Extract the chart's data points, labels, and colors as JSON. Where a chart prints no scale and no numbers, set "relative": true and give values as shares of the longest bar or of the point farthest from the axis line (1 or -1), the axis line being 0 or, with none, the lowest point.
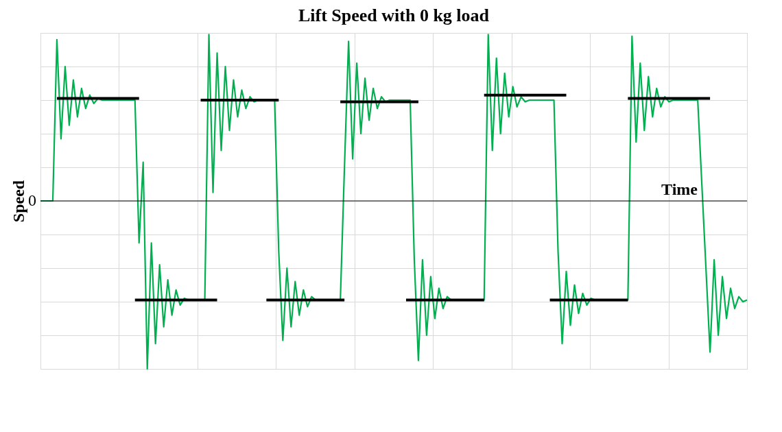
{
  "chart_data": {
    "type": "line",
    "title": "Lift Speed with 0 kg load",
    "xlabel": "Time",
    "ylabel": "Speed",
    "relative": true,
    "grid": true,
    "legend": false,
    "line_style": "solid",
    "categories": [
      null,
      null,
      null,
      null,
      null,
      null,
      null,
      null,
      null,
      null,
      null,
      null,
      null,
      null,
      null,
      null,
      null,
      null,
      null,
      null,
      null,
      null,
      null,
      null,
      null,
      null,
      null,
      null,
      null,
      null,
      null,
      null,
      null,
      null,
      null,
      null,
      null,
      null,
      null,
      null,
      null,
      null,
      null,
      null,
      null,
      null,
      null,
      null,
      null,
      null,
      null,
      null,
      null,
      null,
      null,
      null,
      null,
      null,
      null,
      null,
      null,
      null,
      null,
      null,
      null,
      null,
      null,
      null,
      null,
      null,
      null,
      null,
      null,
      null,
      null,
      null,
      null,
      null,
      null,
      null,
      null,
      null,
      null,
      null,
      null,
      null,
      null,
      null,
      null,
      null,
      null,
      null,
      null,
      null,
      null,
      null,
      null,
      null,
      null,
      null,
      null,
      null,
      null,
      null,
      null,
      null,
      null,
      null,
      null,
      null,
      null,
      null,
      null,
      null,
      null,
      null,
      null,
      null,
      null,
      null,
      null,
      null,
      null,
      null,
      null,
      null,
      null,
      null,
      null,
      null,
      null,
      null,
      null,
      null,
      null,
      null,
      null,
      null,
      null,
      null,
      null,
      null,
      null,
      null,
      null,
      null,
      null,
      null,
      null,
      null,
      null,
      null,
      null,
      null,
      null,
      null,
      null,
      null,
      null,
      null,
      null,
      null,
      null,
      null,
      null,
      null,
      null,
      null,
      null,
      null,
      null,
      null,
      null
    ],
    "series": [
      {
        "color": "#00b050",
        "values": [
          0,
          0,
          0,
          0,
          0.96,
          0.37,
          0.8,
          0.45,
          0.72,
          0.5,
          0.67,
          0.55,
          0.63,
          0.58,
          0.61,
          0.6,
          0.6,
          0.6,
          0.6,
          0.6,
          0.6,
          0.6,
          0.6,
          0.6,
          -0.25,
          0.23,
          -1.0,
          -0.25,
          -0.85,
          -0.38,
          -0.75,
          -0.47,
          -0.68,
          -0.53,
          -0.62,
          -0.58,
          -0.59,
          -0.59,
          -0.59,
          -0.59,
          -0.59,
          0.99,
          0.05,
          0.88,
          0.3,
          0.8,
          0.42,
          0.72,
          0.5,
          0.66,
          0.55,
          0.62,
          0.59,
          0.6,
          0.6,
          0.6,
          0.6,
          0.6,
          -0.3,
          -0.83,
          -0.4,
          -0.75,
          -0.48,
          -0.68,
          -0.53,
          -0.63,
          -0.57,
          -0.59,
          -0.59,
          -0.59,
          -0.59,
          -0.59,
          -0.59,
          -0.59,
          0.2,
          0.95,
          0.25,
          0.82,
          0.4,
          0.73,
          0.48,
          0.67,
          0.55,
          0.62,
          0.59,
          0.6,
          0.6,
          0.6,
          0.6,
          0.6,
          0.6,
          -0.35,
          -0.95,
          -0.35,
          -0.8,
          -0.45,
          -0.7,
          -0.52,
          -0.64,
          -0.57,
          -0.59,
          -0.59,
          -0.59,
          -0.59,
          -0.59,
          -0.59,
          -0.59,
          -0.59,
          -0.59,
          0.99,
          0.3,
          0.85,
          0.4,
          0.76,
          0.5,
          0.68,
          0.56,
          0.62,
          0.59,
          0.6,
          0.6,
          0.6,
          0.6,
          0.6,
          0.6,
          0.6,
          -0.3,
          -0.85,
          -0.42,
          -0.74,
          -0.5,
          -0.67,
          -0.55,
          -0.62,
          -0.58,
          -0.59,
          -0.59,
          -0.59,
          -0.59,
          -0.59,
          -0.59,
          -0.59,
          -0.59,
          -0.59,
          0.98,
          0.35,
          0.82,
          0.42,
          0.74,
          0.5,
          0.67,
          0.56,
          0.62,
          0.59,
          0.6,
          0.6,
          0.6,
          0.6,
          0.6,
          0.6,
          0.6,
          0.1,
          -0.4,
          -0.9,
          -0.35,
          -0.8,
          -0.45,
          -0.7,
          -0.52,
          -0.64,
          -0.57,
          -0.6,
          -0.59
        ]
      },
      {
        "color": "#000000",
        "values": [
          null,
          null,
          null,
          null,
          0.61,
          0.61,
          0.61,
          0.61,
          0.61,
          0.61,
          0.61,
          0.61,
          0.61,
          0.61,
          0.61,
          0.61,
          0.61,
          0.61,
          0.61,
          0.61,
          0.61,
          0.61,
          0.61,
          0.61,
          0.61,
          null,
          null,
          null,
          null,
          null,
          null,
          null,
          null,
          null,
          null,
          null,
          null,
          null,
          null,
          0.6,
          0.6,
          0.6,
          0.6,
          0.6,
          0.6,
          0.6,
          0.6,
          0.6,
          0.6,
          0.6,
          0.6,
          0.6,
          0.6,
          0.6,
          0.6,
          0.6,
          0.6,
          0.6,
          0.6,
          null,
          null,
          null,
          null,
          null,
          null,
          null,
          null,
          null,
          null,
          null,
          null,
          null,
          null,
          0.59,
          0.59,
          0.59,
          0.59,
          0.59,
          0.59,
          0.59,
          0.59,
          0.59,
          0.59,
          0.59,
          0.59,
          0.59,
          0.59,
          0.59,
          0.59,
          0.59,
          0.59,
          0.59,
          0.59,
          null,
          null,
          null,
          null,
          null,
          null,
          null,
          null,
          null,
          null,
          null,
          null,
          null,
          null,
          null,
          0.63,
          0.63,
          0.63,
          0.63,
          0.63,
          0.63,
          0.63,
          0.63,
          0.63,
          0.63,
          0.63,
          0.63,
          0.63,
          0.63,
          0.63,
          0.63,
          0.63,
          0.63,
          0.63,
          0.63,
          0.63,
          null,
          null,
          null,
          null,
          null,
          null,
          null,
          null,
          null,
          null,
          null,
          null,
          null,
          null,
          0.61,
          0.61,
          0.61,
          0.61,
          0.61,
          0.61,
          0.61,
          0.61,
          0.61,
          0.61,
          0.61,
          0.61,
          0.61,
          0.61,
          0.61,
          0.61,
          0.61,
          0.61,
          0.61,
          0.61,
          0.61,
          null,
          null,
          null,
          null,
          null,
          null,
          null,
          null,
          null
        ]
      },
      {
        "color": "#000000",
        "values": [
          null,
          null,
          null,
          null,
          null,
          null,
          null,
          null,
          null,
          null,
          null,
          null,
          null,
          null,
          null,
          null,
          null,
          null,
          null,
          null,
          null,
          null,
          null,
          -0.59,
          -0.59,
          -0.59,
          -0.59,
          -0.59,
          -0.59,
          -0.59,
          -0.59,
          -0.59,
          -0.59,
          -0.59,
          -0.59,
          -0.59,
          -0.59,
          -0.59,
          -0.59,
          -0.59,
          -0.59,
          -0.59,
          -0.59,
          -0.59,
          null,
          null,
          null,
          null,
          null,
          null,
          null,
          null,
          null,
          null,
          null,
          -0.59,
          -0.59,
          -0.59,
          -0.59,
          -0.59,
          -0.59,
          -0.59,
          -0.59,
          -0.59,
          -0.59,
          -0.59,
          -0.59,
          -0.59,
          -0.59,
          -0.59,
          -0.59,
          -0.59,
          -0.59,
          -0.59,
          -0.59,
          null,
          null,
          null,
          null,
          null,
          null,
          null,
          null,
          null,
          null,
          null,
          null,
          null,
          null,
          -0.59,
          -0.59,
          -0.59,
          -0.59,
          -0.59,
          -0.59,
          -0.59,
          -0.59,
          -0.59,
          -0.59,
          -0.59,
          -0.59,
          -0.59,
          -0.59,
          -0.59,
          -0.59,
          -0.59,
          -0.59,
          -0.59,
          -0.59,
          null,
          null,
          null,
          null,
          null,
          null,
          null,
          null,
          null,
          null,
          null,
          null,
          null,
          null,
          null,
          -0.59,
          -0.59,
          -0.59,
          -0.59,
          -0.59,
          -0.59,
          -0.59,
          -0.59,
          -0.59,
          -0.59,
          -0.59,
          -0.59,
          -0.59,
          -0.59,
          -0.59,
          -0.59,
          -0.59,
          -0.59,
          -0.59,
          -0.59,
          null,
          null,
          null,
          null,
          null,
          null,
          null,
          null,
          null,
          null,
          null,
          null,
          null,
          null,
          null,
          null,
          null,
          null,
          null,
          null,
          null,
          null,
          null,
          null,
          null,
          null,
          null,
          null,
          null
        ]
      }
    ],
    "ref_lines": [
      {
        "axis": "y",
        "value": 0,
        "label": "0"
      }
    ]
  }
}
